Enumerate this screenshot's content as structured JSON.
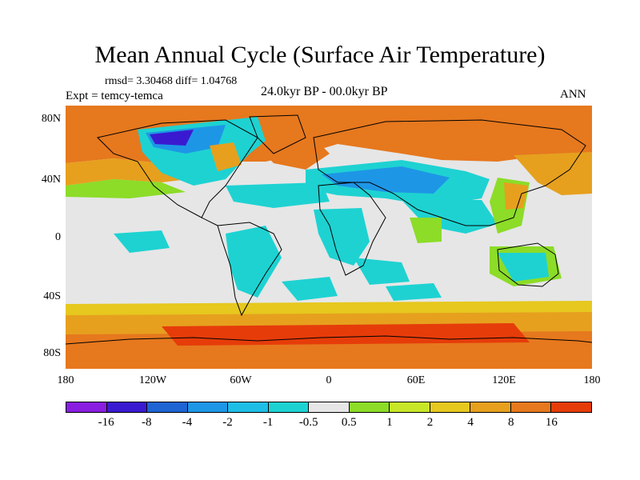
{
  "title": "Mean Annual Cycle (Surface Air Temperature)",
  "stats": "rmsd= 3.30468 diff= 1.04768",
  "experiment": "Expt = temcy-temca",
  "period": "24.0kyr BP - 00.0kyr BP",
  "season": "ANN",
  "lat_labels": [
    "80N",
    "40N",
    "0",
    "40S",
    "80S"
  ],
  "lon_labels": [
    "180",
    "120W",
    "60W",
    "0",
    "60E",
    "120E",
    "180"
  ],
  "colorbar": {
    "colors": [
      "#8a1ee0",
      "#3a1ad0",
      "#1e64d2",
      "#1e96e6",
      "#1ebee6",
      "#1ed2d2",
      "#e6e6e6",
      "#8cdc28",
      "#c8e628",
      "#e6c81e",
      "#e6a01e",
      "#e6781e",
      "#e63c0a"
    ],
    "labels": [
      "-16",
      "-8",
      "-4",
      "-2",
      "-1",
      "-0.5",
      "0.5",
      "1",
      "2",
      "4",
      "8",
      "16"
    ]
  },
  "palette": {
    "ocean_neutral": "#e6e6e6",
    "warm_strong": "#e6781e",
    "warm_mid": "#e6a01e",
    "warm_light": "#e6c81e",
    "green": "#8cdc28",
    "cyan": "#1ed2d2",
    "cyan_mid": "#1ebee6",
    "blue": "#1e96e6",
    "dark_blue": "#3a1ad0"
  }
}
